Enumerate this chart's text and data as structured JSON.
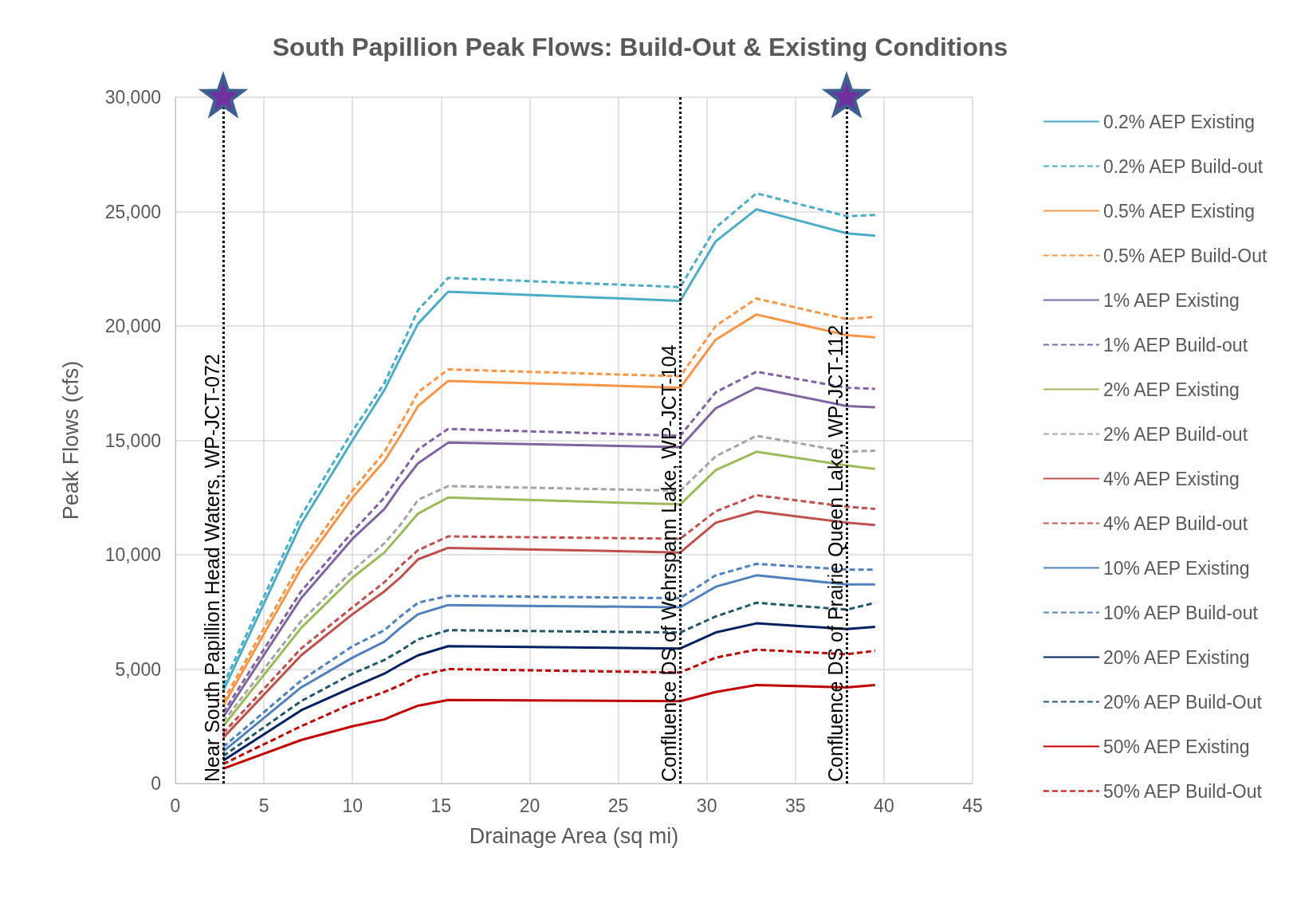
{
  "chart_data": {
    "type": "line",
    "title": "South Papillion Peak Flows: Build-Out & Existing Conditions",
    "xlabel": "Drainage Area (sq mi)",
    "ylabel": "Peak Flows (cfs)",
    "x": [
      2.7,
      7.1,
      10,
      11.8,
      12.7,
      13.7,
      15.4,
      28.5,
      30.5,
      32.8,
      37.9,
      39.5
    ],
    "xlim": [
      0,
      45
    ],
    "xticks": [
      0,
      5,
      10,
      15,
      20,
      25,
      30,
      35,
      40,
      45
    ],
    "ylim": [
      0,
      30000
    ],
    "yticks": [
      0,
      {
        "value": 5000,
        "label": "5,000"
      },
      {
        "value": 10000,
        "label": "10,000"
      },
      {
        "value": 15000,
        "label": "15,000"
      },
      {
        "value": 20000,
        "label": "20,000"
      },
      {
        "value": 25000,
        "label": "25,000"
      },
      {
        "value": 30000,
        "label": "30,000"
      }
    ],
    "grid": true,
    "legend": "right",
    "marker": "none",
    "series": [
      {
        "name": "0.2% AEP Existing",
        "color": "#4bacc6",
        "line_style": "solid",
        "values": [
          4050,
          11350,
          15000,
          17200,
          18600,
          20100,
          21500,
          21100,
          23700,
          25100,
          24050,
          23950
        ]
      },
      {
        "name": "0.2% AEP Build-out",
        "color": "#4bacc6",
        "line_style": "dashed",
        "values": [
          4300,
          11700,
          15400,
          17500,
          19000,
          20700,
          22100,
          21700,
          24300,
          25800,
          24800,
          24850
        ]
      },
      {
        "name": "0.5% AEP Existing",
        "color": "#f79646",
        "line_style": "solid",
        "values": [
          3400,
          9400,
          12500,
          14100,
          15200,
          16500,
          17600,
          17300,
          19400,
          20500,
          19600,
          19500
        ]
      },
      {
        "name": "0.5% AEP Build-Out",
        "color": "#f79646",
        "line_style": "dashed",
        "values": [
          3600,
          9700,
          12800,
          14500,
          15700,
          17100,
          18100,
          17800,
          20000,
          21200,
          20300,
          20400
        ]
      },
      {
        "name": "1% AEP Existing",
        "color": "#8064a2",
        "line_style": "solid",
        "values": [
          2900,
          8100,
          10700,
          12000,
          13000,
          14000,
          14900,
          14700,
          16400,
          17300,
          16500,
          16450
        ]
      },
      {
        "name": "1% AEP Build-out",
        "color": "#8064a2",
        "line_style": "dashed",
        "values": [
          3100,
          8400,
          11000,
          12500,
          13500,
          14600,
          15500,
          15200,
          17100,
          18000,
          17300,
          17250
        ]
      },
      {
        "name": "2% AEP Existing",
        "color": "#9bbb59",
        "line_style": "solid",
        "values": [
          2500,
          6800,
          9000,
          10100,
          10900,
          11800,
          12500,
          12200,
          13700,
          14500,
          13900,
          13750
        ]
      },
      {
        "name": "2% AEP Build-out",
        "color": "#a5a5a5",
        "line_style": "dashed",
        "values": [
          2700,
          7100,
          9300,
          10500,
          11300,
          12400,
          13000,
          12800,
          14300,
          15200,
          14500,
          14550
        ]
      },
      {
        "name": "4% AEP Existing",
        "color": "#c0504d",
        "line_style": "solid",
        "values": [
          2000,
          5600,
          7400,
          8400,
          9000,
          9800,
          10300,
          10100,
          11400,
          11900,
          11400,
          11300
        ]
      },
      {
        "name": "4% AEP Build-out",
        "color": "#c0504d",
        "line_style": "dashed",
        "values": [
          2200,
          5900,
          7700,
          8800,
          9500,
          10200,
          10800,
          10700,
          11900,
          12600,
          12100,
          12000
        ]
      },
      {
        "name": "10% AEP Existing",
        "color": "#4f81bd",
        "line_style": "solid",
        "values": [
          1400,
          4200,
          5500,
          6200,
          6800,
          7400,
          7800,
          7700,
          8600,
          9100,
          8700,
          8700
        ]
      },
      {
        "name": "10% AEP Build-out",
        "color": "#4f81bd",
        "line_style": "dashed",
        "values": [
          1600,
          4500,
          6000,
          6700,
          7300,
          7900,
          8200,
          8100,
          9100,
          9600,
          9350,
          9350
        ]
      },
      {
        "name": "20% AEP Existing",
        "color": "#002060",
        "line_style": "solid",
        "values": [
          1000,
          3200,
          4200,
          4800,
          5200,
          5600,
          6000,
          5900,
          6600,
          7000,
          6750,
          6850
        ]
      },
      {
        "name": "20% AEP Build-Out",
        "color": "#215967",
        "line_style": "dashed",
        "values": [
          1200,
          3600,
          4800,
          5400,
          5800,
          6300,
          6700,
          6600,
          7300,
          7900,
          7600,
          7900
        ]
      },
      {
        "name": "50% AEP Existing",
        "color": "#c00000",
        "line_style": "solid",
        "values": [
          650,
          1900,
          2500,
          2800,
          3100,
          3400,
          3650,
          3600,
          4000,
          4300,
          4200,
          4300
        ]
      },
      {
        "name": "50% AEP Build-Out",
        "color": "#c00000",
        "line_style": "dashed",
        "values": [
          850,
          2500,
          3500,
          4000,
          4300,
          4700,
          5000,
          4850,
          5500,
          5850,
          5650,
          5800
        ]
      }
    ],
    "ref_lines": [
      {
        "axis": "x",
        "value": 2.7,
        "label": "Near South Papillion Head Waters, WP-JCT-072",
        "color": "#000000",
        "line_style": "dotted"
      },
      {
        "axis": "x",
        "value": 28.5,
        "label": "Confluence DS of Wehrspann Lake, WP-JCT-104",
        "color": "#000000",
        "line_style": "dotted"
      },
      {
        "axis": "x",
        "value": 37.9,
        "label": "Confluence DS of Prairie Queen Lake, WP-JCT-112",
        "color": "#000000",
        "line_style": "dotted"
      }
    ]
  }
}
